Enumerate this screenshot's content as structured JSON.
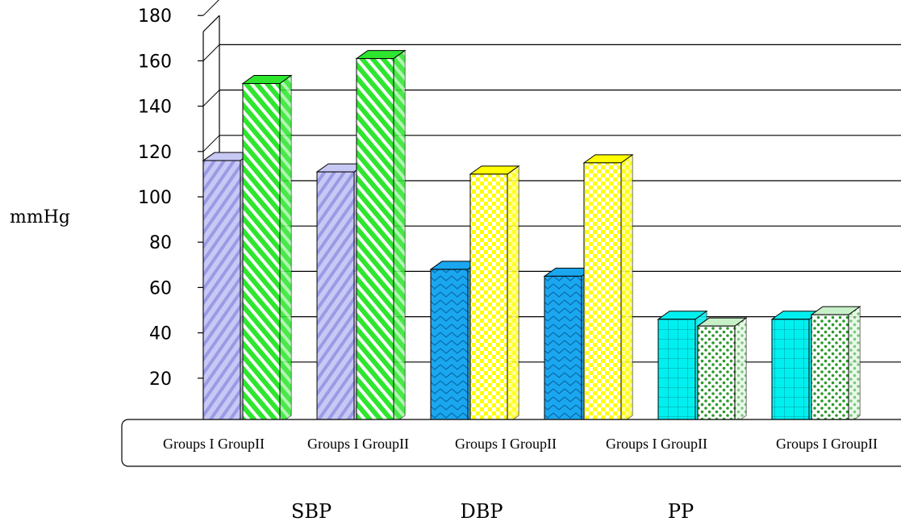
{
  "chart_data": {
    "type": "bar",
    "ylabel": "mmHg",
    "ylim": [
      0,
      180
    ],
    "yticks": [
      20,
      40,
      60,
      80,
      100,
      120,
      140,
      160,
      180
    ],
    "grid": true,
    "category_labels": [
      "Groups I GroupII",
      "Groups I GroupII",
      "Groups I GroupII",
      "Groups I GroupII",
      "Groups I GroupII"
    ],
    "group_labels": [
      "SBP",
      "DBP",
      "PP"
    ],
    "bars": [
      {
        "value": 116,
        "color": "#c8c8f4",
        "pattern": "diag-blue"
      },
      {
        "value": 150,
        "color": "#2ee62e",
        "pattern": "diag-green"
      },
      {
        "value": 111,
        "color": "#c8c8f4",
        "pattern": "diag-blue"
      },
      {
        "value": 161,
        "color": "#2ee62e",
        "pattern": "diag-green"
      },
      {
        "value": 68,
        "color": "#1aa7f0",
        "pattern": "zigzag"
      },
      {
        "value": 110,
        "color": "#ffff00",
        "pattern": "checker"
      },
      {
        "value": 65,
        "color": "#1aa7f0",
        "pattern": "zigzag"
      },
      {
        "value": 115,
        "color": "#ffff00",
        "pattern": "checker"
      },
      {
        "value": 46,
        "color": "#00f0f0",
        "pattern": "grid"
      },
      {
        "value": 43,
        "color": "#c8f0c8",
        "pattern": "dots"
      },
      {
        "value": 46,
        "color": "#00f0f0",
        "pattern": "grid"
      },
      {
        "value": 48,
        "color": "#c8f0c8",
        "pattern": "dots"
      }
    ]
  }
}
